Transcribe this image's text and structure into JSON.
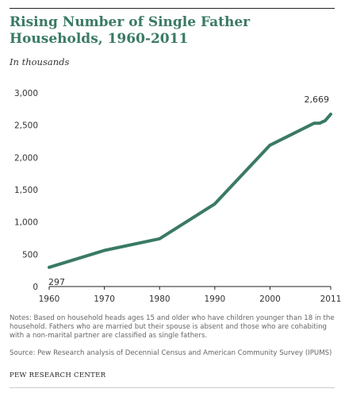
{
  "header": {
    "title": "Rising Number of Single Father Households, 1960-2011",
    "subtitle": "In thousands"
  },
  "footer": {
    "notes": "Notes: Based on household heads ages 15 and older who have children younger than 18 in the household. Fathers who are married but their spouse is absent and those who are cohabiting with a non-marital partner are classified as single fathers.",
    "source": "Source: Pew Research analysis of Decennial Census and American Community Survey (IPUMS)",
    "org": "PEW RESEARCH CENTER"
  },
  "colors": {
    "line": "#3a7a63",
    "title": "#3a7a63",
    "axis": "#222222"
  },
  "chart_data": {
    "type": "line",
    "title": "Rising Number of Single Father Households, 1960-2011",
    "ylabel": "In thousands",
    "xlabel": "",
    "ylim": [
      0,
      3000
    ],
    "xlim": [
      1960,
      2011
    ],
    "yticks": [
      0,
      500,
      1000,
      1500,
      2000,
      2500,
      3000
    ],
    "ytick_labels": [
      "0",
      "500",
      "1,000",
      "1,500",
      "2,000",
      "2,500",
      "3,000"
    ],
    "xticks": [
      1960,
      1970,
      1980,
      1990,
      2000,
      2011
    ],
    "xtick_labels": [
      "1960",
      "1970",
      "1980",
      "1990",
      "2000",
      "2011"
    ],
    "grid": false,
    "series": [
      {
        "x": [
          1960,
          1970,
          1980,
          1990,
          2000,
          2008,
          2009,
          2010,
          2011
        ],
        "values": [
          297,
          560,
          740,
          1280,
          2190,
          2530,
          2530,
          2570,
          2669
        ]
      }
    ],
    "annotations": [
      {
        "x": 1960,
        "y": 297,
        "text": "297"
      },
      {
        "x": 2011,
        "y": 2669,
        "text": "2,669"
      }
    ]
  }
}
